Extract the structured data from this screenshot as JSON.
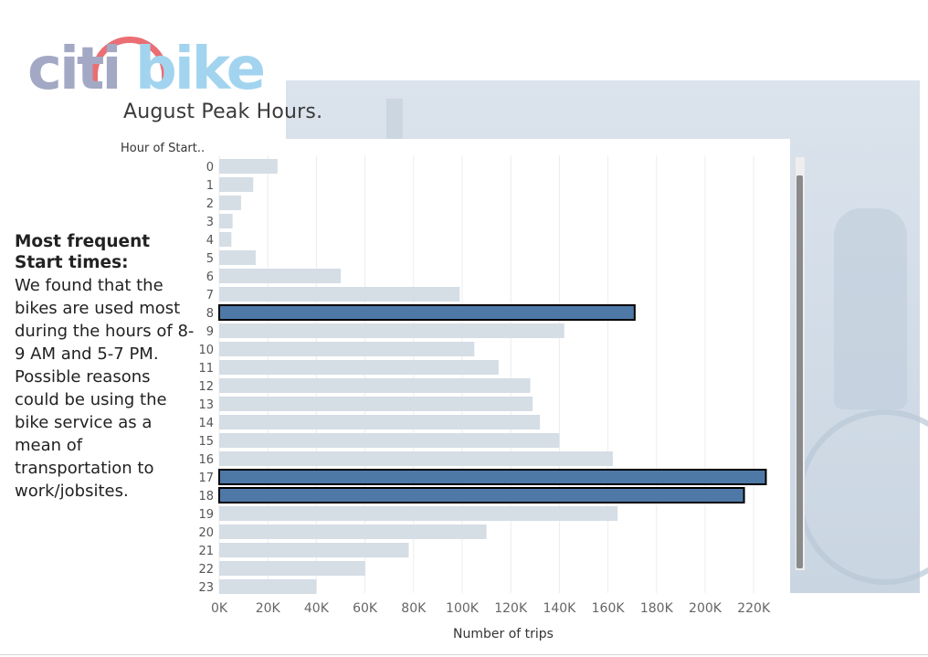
{
  "logo": {
    "left_text": "citi",
    "right_text": "bike"
  },
  "title": "August Peak Hours.",
  "sidebar": {
    "heading": "Most frequent Start times:",
    "body": "We found that the bikes are used most during the hours of 8-9 AM and 5-7 PM. Possible reasons could be using the bike service as a mean of transportation to work/jobsites."
  },
  "colors": {
    "base_bar": "#d5dde5",
    "highlight_bar": "#4e79a7",
    "highlight_border": "#000000",
    "grid": "#ececec",
    "title_text": "#3a3a3a"
  },
  "chart_data": {
    "type": "bar",
    "orientation": "horizontal",
    "title": "August Peak Hours.",
    "ylabel": "Hour of Start..",
    "xlabel": "Number of trips",
    "categories": [
      "0",
      "1",
      "2",
      "3",
      "4",
      "5",
      "6",
      "7",
      "8",
      "9",
      "10",
      "11",
      "12",
      "13",
      "14",
      "15",
      "16",
      "17",
      "18",
      "19",
      "20",
      "21",
      "22",
      "23"
    ],
    "values": [
      24000,
      14000,
      9000,
      5500,
      5000,
      15000,
      50000,
      99000,
      171000,
      142000,
      105000,
      115000,
      128000,
      129000,
      132000,
      140000,
      162000,
      225000,
      216000,
      164000,
      110000,
      78000,
      60000,
      40000
    ],
    "highlighted": [
      "8",
      "17",
      "18"
    ],
    "xlim": [
      0,
      235000
    ],
    "xticks": [
      0,
      20000,
      40000,
      60000,
      80000,
      100000,
      120000,
      140000,
      160000,
      180000,
      200000,
      220000
    ],
    "xtick_labels": [
      "0K",
      "20K",
      "40K",
      "60K",
      "80K",
      "100K",
      "120K",
      "140K",
      "160K",
      "180K",
      "200K",
      "220K"
    ],
    "grid": true
  }
}
